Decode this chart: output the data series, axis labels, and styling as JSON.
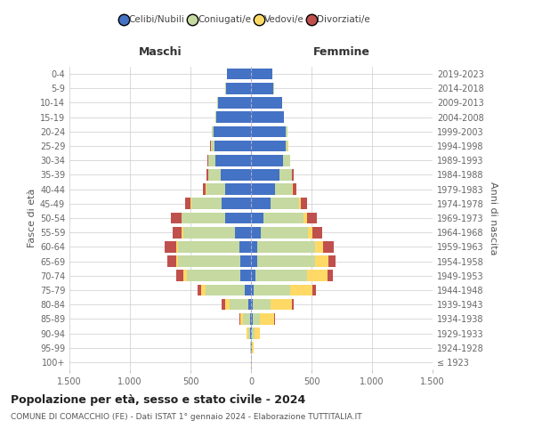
{
  "age_groups": [
    "100+",
    "95-99",
    "90-94",
    "85-89",
    "80-84",
    "75-79",
    "70-74",
    "65-69",
    "60-64",
    "55-59",
    "50-54",
    "45-49",
    "40-44",
    "35-39",
    "30-34",
    "25-29",
    "20-24",
    "15-19",
    "10-14",
    "5-9",
    "0-4"
  ],
  "birth_years": [
    "≤ 1923",
    "1924-1928",
    "1929-1933",
    "1934-1938",
    "1939-1943",
    "1944-1948",
    "1949-1953",
    "1954-1958",
    "1959-1963",
    "1964-1968",
    "1969-1973",
    "1974-1978",
    "1979-1983",
    "1984-1988",
    "1989-1993",
    "1994-1998",
    "1999-2003",
    "2004-2008",
    "2009-2013",
    "2014-2018",
    "2019-2023"
  ],
  "males": {
    "celibi": [
      2,
      3,
      5,
      8,
      25,
      55,
      90,
      90,
      95,
      130,
      210,
      245,
      215,
      250,
      295,
      305,
      310,
      290,
      275,
      205,
      195
    ],
    "coniugati": [
      1,
      5,
      20,
      55,
      155,
      320,
      440,
      510,
      510,
      430,
      360,
      250,
      155,
      105,
      60,
      25,
      15,
      5,
      5,
      5,
      0
    ],
    "vedovi": [
      0,
      2,
      10,
      25,
      30,
      35,
      30,
      20,
      15,
      10,
      5,
      3,
      2,
      1,
      0,
      0,
      0,
      0,
      0,
      0,
      0
    ],
    "divorziati": [
      0,
      0,
      2,
      5,
      35,
      30,
      60,
      70,
      95,
      80,
      85,
      45,
      25,
      15,
      5,
      5,
      2,
      0,
      0,
      0,
      0
    ]
  },
  "females": {
    "nubili": [
      2,
      4,
      8,
      12,
      15,
      25,
      40,
      50,
      55,
      80,
      105,
      160,
      195,
      235,
      265,
      285,
      290,
      270,
      255,
      185,
      175
    ],
    "coniugate": [
      1,
      5,
      20,
      60,
      145,
      295,
      420,
      480,
      475,
      390,
      330,
      235,
      145,
      100,
      55,
      20,
      10,
      5,
      5,
      5,
      0
    ],
    "vedove": [
      2,
      10,
      45,
      120,
      175,
      190,
      170,
      110,
      65,
      35,
      25,
      15,
      8,
      5,
      2,
      1,
      0,
      0,
      0,
      0,
      0
    ],
    "divorziate": [
      0,
      1,
      2,
      5,
      20,
      30,
      45,
      60,
      90,
      80,
      85,
      50,
      25,
      15,
      5,
      3,
      2,
      0,
      0,
      0,
      0
    ]
  },
  "colors": {
    "celibi_nubili": "#4472c4",
    "coniugati": "#c5d9a0",
    "vedovi": "#ffd966",
    "divorziati": "#c0504d"
  },
  "xlim": 1500,
  "xticks": [
    -1500,
    -1000,
    -500,
    0,
    500,
    1000,
    1500
  ],
  "xtick_labels": [
    "1.500",
    "1.000",
    "500",
    "0",
    "500",
    "1.000",
    "1.500"
  ],
  "title": "Popolazione per età, sesso e stato civile - 2024",
  "subtitle": "COMUNE DI COMACCHIO (FE) - Dati ISTAT 1° gennaio 2024 - Elaborazione TUTTITALIA.IT",
  "ylabel": "Fasce di età",
  "ylabel_right": "Anni di nascita",
  "label_maschi": "Maschi",
  "label_femmine": "Femmine",
  "legend_labels": [
    "Celibi/Nubili",
    "Coniugati/e",
    "Vedovi/e",
    "Divorziati/e"
  ],
  "background_color": "#ffffff",
  "grid_color": "#cccccc"
}
